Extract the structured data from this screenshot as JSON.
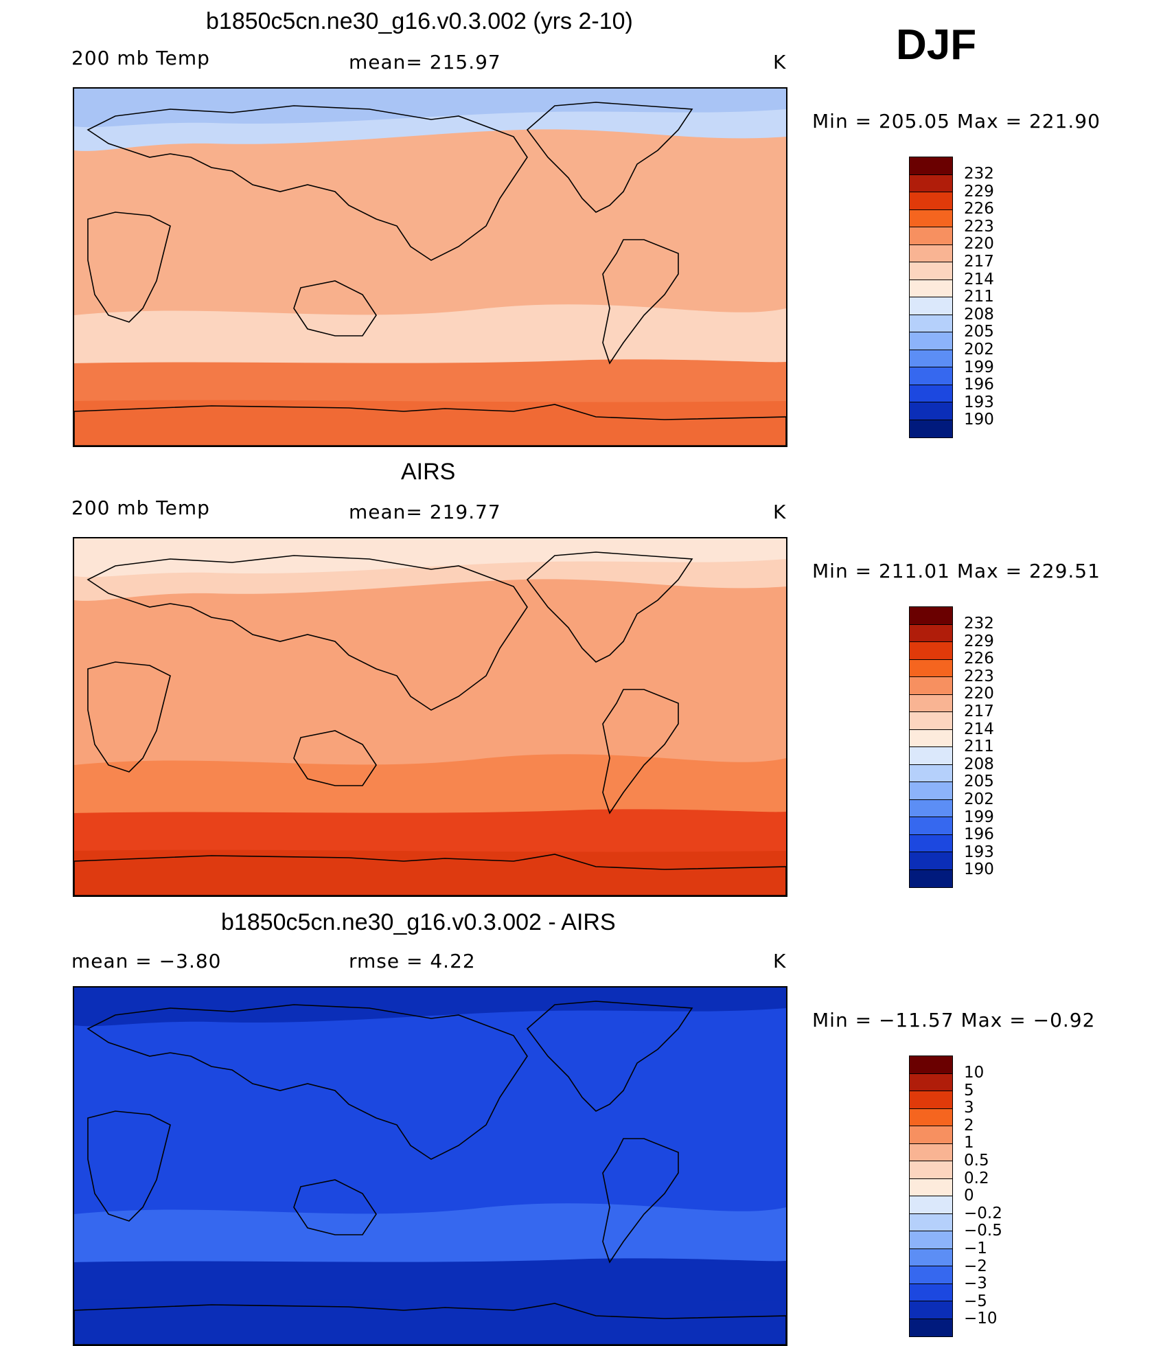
{
  "season": "DJF",
  "units": "K",
  "panels": [
    {
      "title": "b1850c5cn.ne30_g16.v0.3.002 (yrs 2-10)",
      "variable": "200 mb Temp",
      "stat": "mean=  215.97",
      "minmax": "Min  =  205.05  Max  =  221.90",
      "colorbar": {
        "colors": [
          "#6a0000",
          "#b01d0a",
          "#e03a0a",
          "#f5651f",
          "#f79060",
          "#f9b493",
          "#fcd5bf",
          "#fdebdc",
          "#dbe8fb",
          "#b5d0fb",
          "#8cb3fa",
          "#5c8ef5",
          "#3668ef",
          "#1c48e0",
          "#0b2eb8",
          "#001a7d"
        ],
        "ticks": [
          "232",
          "229",
          "226",
          "223",
          "220",
          "217",
          "214",
          "211",
          "208",
          "205",
          "202",
          "199",
          "196",
          "193",
          "190"
        ]
      },
      "map_colors": {
        "bg": "#f8b08c",
        "north_high": "#a9c4f5",
        "north_band": "#c6d9f9",
        "mid": "#fcd5bf",
        "south_band": "#f37a47",
        "antarctic": "#f06a35"
      }
    },
    {
      "title": "AIRS",
      "variable": "200 mb Temp",
      "stat": "mean=  219.77",
      "minmax": "Min  =  211.01  Max  =  229.51",
      "colorbar": {
        "colors": [
          "#6a0000",
          "#b01d0a",
          "#e03a0a",
          "#f5651f",
          "#f79060",
          "#f9b493",
          "#fcd5bf",
          "#fdebdc",
          "#dbe8fb",
          "#b5d0fb",
          "#8cb3fa",
          "#5c8ef5",
          "#3668ef",
          "#1c48e0",
          "#0b2eb8",
          "#001a7d"
        ],
        "ticks": [
          "232",
          "229",
          "226",
          "223",
          "220",
          "217",
          "214",
          "211",
          "208",
          "205",
          "202",
          "199",
          "196",
          "193",
          "190"
        ]
      },
      "map_colors": {
        "bg": "#f8a37a",
        "north_high": "#fde5d6",
        "north_band": "#fcd1b9",
        "mid": "#f7864f",
        "south_band": "#e8421a",
        "antarctic": "#de3a10"
      }
    },
    {
      "title": "b1850c5cn.ne30_g16.v0.3.002 - AIRS",
      "variable": "mean  =    −3.80",
      "stat": "rmse  =     4.22",
      "minmax": "Min  =  −11.57  Max  =    −0.92",
      "colorbar": {
        "colors": [
          "#6a0000",
          "#b01d0a",
          "#e03a0a",
          "#f5651f",
          "#f79060",
          "#f9b493",
          "#fcd5bf",
          "#fdebdc",
          "#dbe8fb",
          "#b5d0fb",
          "#8cb3fa",
          "#5c8ef5",
          "#3668ef",
          "#1c48e0",
          "#0b2eb8",
          "#001a7d"
        ],
        "ticks": [
          "10",
          "5",
          "3",
          "2",
          "1",
          "0.5",
          "0.2",
          "0",
          "−0.2",
          "−0.5",
          "−1",
          "−2",
          "−3",
          "−5",
          "−10"
        ]
      },
      "map_colors": {
        "bg": "#1c48e0",
        "north_high": "#0b2eb8",
        "north_band": "#1c48e0",
        "mid": "#3668ef",
        "south_band": "#0b2eb8",
        "antarctic": "#0b2eb8"
      }
    }
  ]
}
